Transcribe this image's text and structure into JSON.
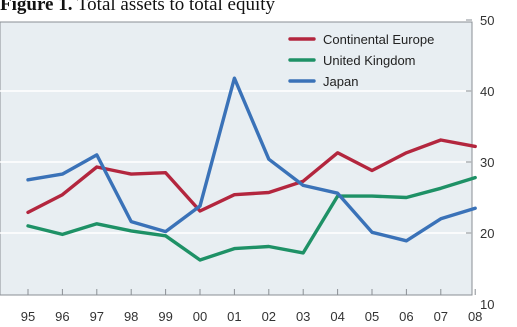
{
  "chart_data": {
    "type": "line",
    "title_prefix": "Figure 1.",
    "title_rest": " Total assets to total equity",
    "categories": [
      "95",
      "96",
      "97",
      "98",
      "99",
      "00",
      "01",
      "02",
      "03",
      "04",
      "05",
      "06",
      "07",
      "08"
    ],
    "series": [
      {
        "name": "Continental Europe",
        "color": "#b3263e",
        "values": [
          22.9,
          25.4,
          29.3,
          28.3,
          28.5,
          23.1,
          25.4,
          25.7,
          27.3,
          31.3,
          28.8,
          31.3,
          33.1,
          32.2
        ]
      },
      {
        "name": "United Kingdom",
        "color": "#1e9166",
        "values": [
          21.0,
          19.8,
          21.3,
          20.3,
          19.6,
          16.2,
          17.8,
          18.1,
          17.2,
          25.2,
          25.2,
          25.0,
          26.3,
          27.8
        ]
      },
      {
        "name": "Japan",
        "color": "#3a72b8",
        "values": [
          27.5,
          28.3,
          31.0,
          21.6,
          20.2,
          23.8,
          41.8,
          30.4,
          26.7,
          25.6,
          20.1,
          18.9,
          22.0,
          23.5
        ]
      }
    ],
    "yticks": [
      10,
      20,
      30,
      40,
      50
    ],
    "ylim": [
      10,
      50
    ],
    "y_axis_side": "right",
    "grid": true,
    "legend_position": "top-right",
    "plot_background": "#e8eef2"
  }
}
